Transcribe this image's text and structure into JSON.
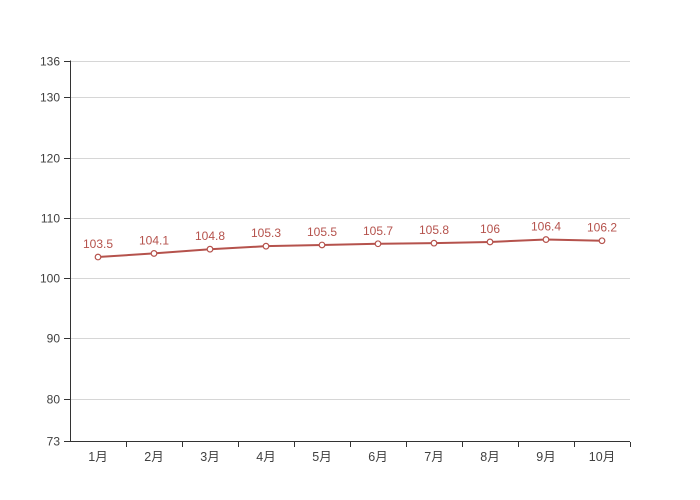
{
  "chart_data": {
    "type": "line",
    "categories": [
      "1月",
      "2月",
      "3月",
      "4月",
      "5月",
      "6月",
      "7月",
      "8月",
      "9月",
      "10月"
    ],
    "values": [
      103.5,
      104.1,
      104.8,
      105.3,
      105.5,
      105.7,
      105.8,
      106,
      106.4,
      106.2
    ],
    "point_labels": [
      "103.5",
      "104.1",
      "104.8",
      "105.3",
      "105.5",
      "105.7",
      "105.8",
      "106",
      "106.4",
      "106.2"
    ],
    "title": "",
    "xlabel": "",
    "ylabel": "",
    "ylim": [
      73,
      136
    ],
    "yticks": [
      73,
      80,
      90,
      100,
      110,
      120,
      130,
      136
    ],
    "grid": "horizontal-only",
    "legend": "none",
    "colors": {
      "line": "#b5524c",
      "marker_fill": "#ffffff",
      "marker_stroke": "#b5524c",
      "data_label": "#b5524c",
      "axis": "#333333",
      "gridline": "#d6d6d6",
      "tick_text": "#404040"
    }
  }
}
